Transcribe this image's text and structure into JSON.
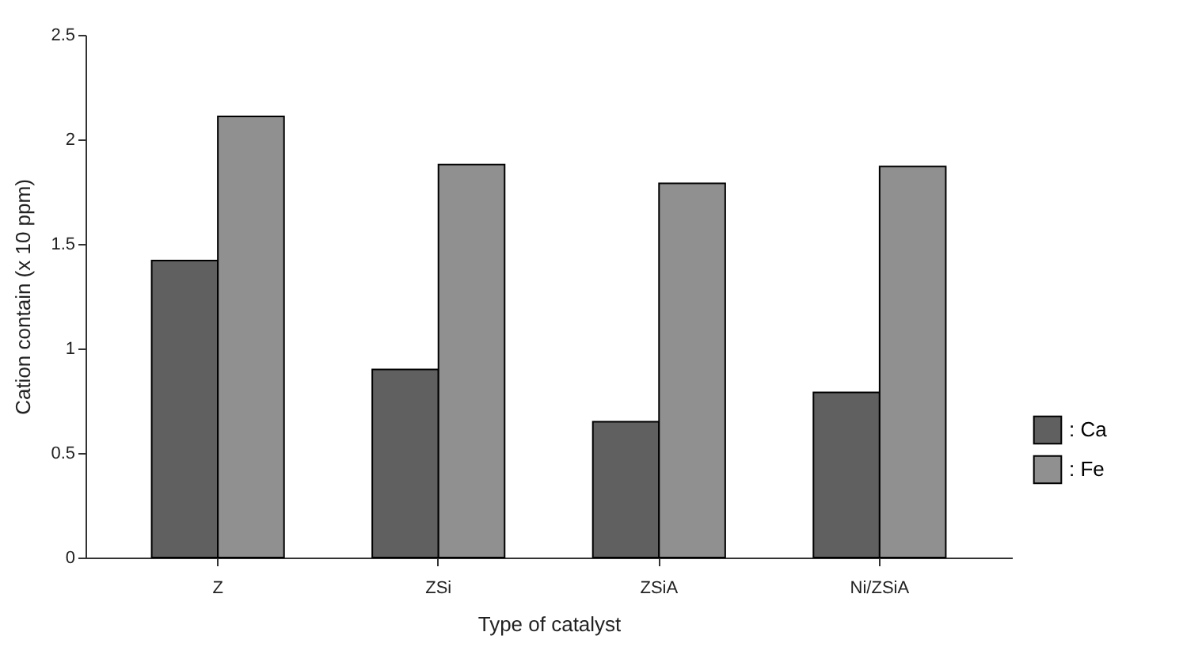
{
  "chart_data": {
    "type": "bar",
    "xlabel": "Type of catalyst",
    "ylabel": "Cation contain (x 10 ppm)",
    "categories": [
      "Z",
      "ZSi",
      "ZSiA",
      "Ni/ZSiA"
    ],
    "series": [
      {
        "name": ": Ca",
        "color": "#606060",
        "values": [
          1.42,
          0.9,
          0.65,
          0.79
        ]
      },
      {
        "name": ": Fe",
        "color": "#909090",
        "values": [
          2.11,
          1.88,
          1.79,
          1.87
        ]
      }
    ],
    "ylim": [
      0,
      2.5
    ],
    "yticks": [
      0,
      0.5,
      1,
      1.5,
      2,
      2.5
    ],
    "legend": "right"
  }
}
